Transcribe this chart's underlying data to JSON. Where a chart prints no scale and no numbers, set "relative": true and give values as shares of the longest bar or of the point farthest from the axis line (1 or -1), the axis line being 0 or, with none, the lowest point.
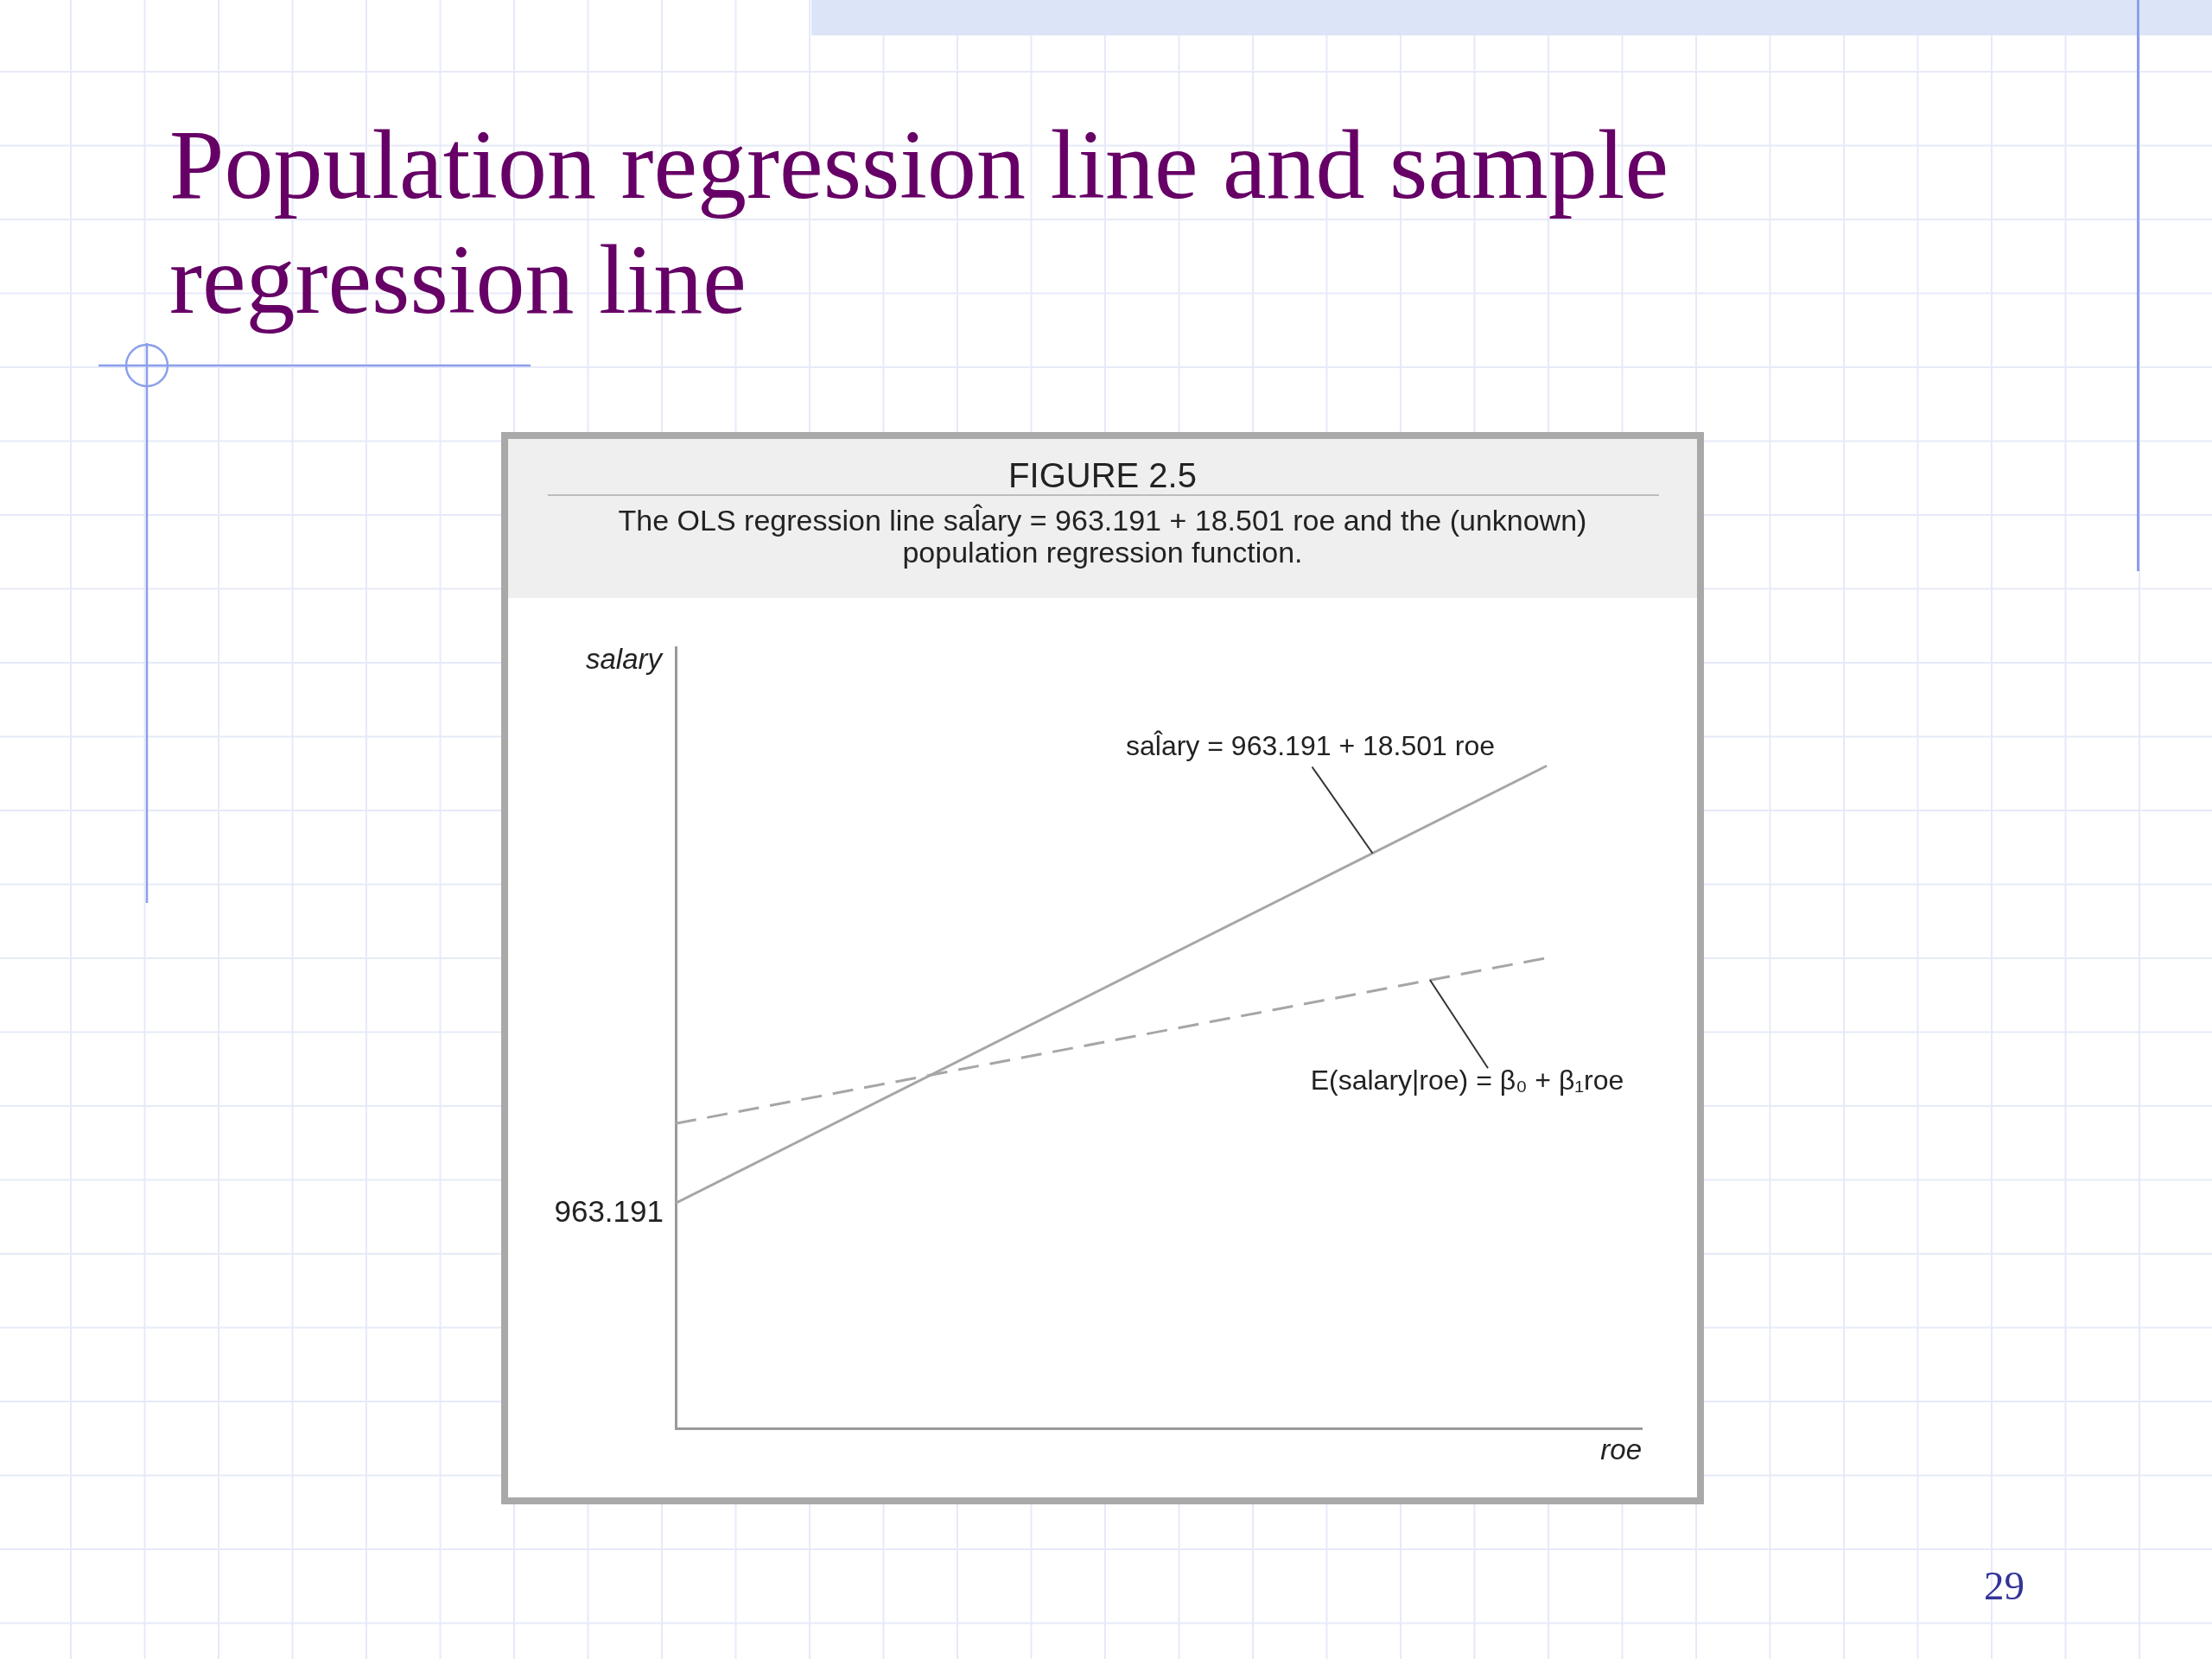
{
  "chart_data": {
    "type": "line",
    "title": "Population regression line and sample regression line",
    "subtitle": "FIGURE 2.5",
    "annotations": [
      "The OLS regression line sal̂ary = 963.191 + 18.501 roe and the (unknown) population regression function.",
      "963.191",
      "29"
    ],
    "xlabel": "roe",
    "ylabel": "salary",
    "categories": [
      null,
      null
    ],
    "relative": true,
    "marker": "none",
    "series": [
      {
        "name": "sal̂ary = 963.191 + 18.501 roe",
        "color": "#a6a6a6",
        "line_style": "solid",
        "values": [
          0.34,
          1
        ]
      },
      {
        "name": "E(salary|roe) = β₀ + β₁roe",
        "color": "#a6a6a6",
        "line_style": "dashed",
        "values": [
          0.46,
          0.71
        ]
      }
    ]
  }
}
